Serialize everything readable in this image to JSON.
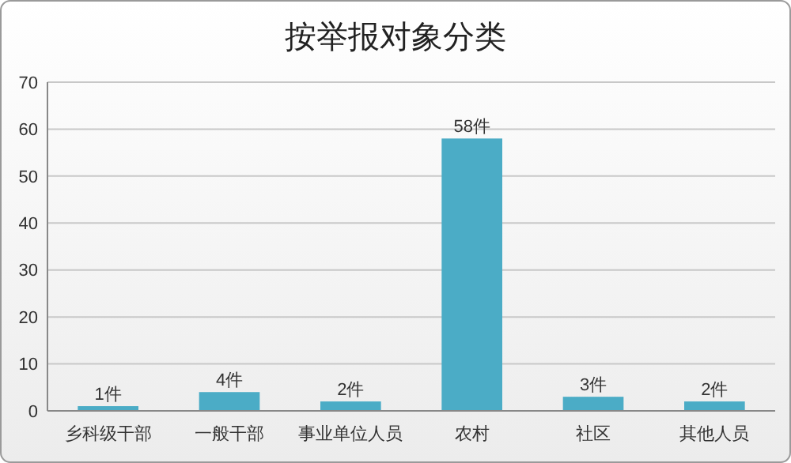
{
  "chart_data": {
    "type": "bar",
    "title": "按举报对象分类",
    "categories": [
      "乡科级干部",
      "一般干部",
      "事业单位人员",
      "农村",
      "社区",
      "其他人员"
    ],
    "values": [
      1,
      4,
      2,
      58,
      3,
      2
    ],
    "value_labels": [
      "1件",
      "4件",
      "2件",
      "58件",
      "3件",
      "2件"
    ],
    "color": "#4bacc6",
    "ylim": [
      0,
      70
    ],
    "yticks": [
      0,
      10,
      20,
      30,
      40,
      50,
      60,
      70
    ],
    "grid": "y"
  }
}
